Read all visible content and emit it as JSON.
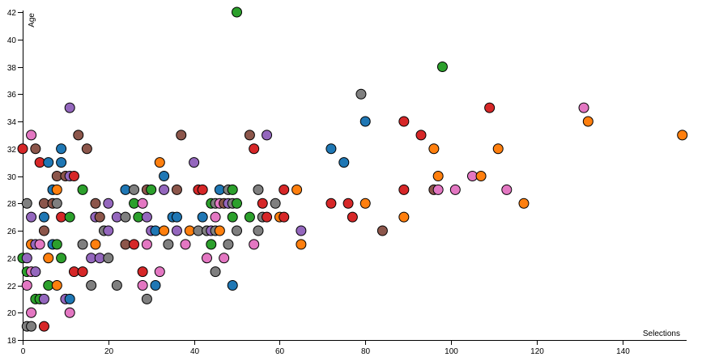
{
  "chart_data": {
    "type": "scatter",
    "xlabel": "Selections",
    "ylabel": "Age",
    "xlim": [
      0,
      155
    ],
    "ylim": [
      18,
      42
    ],
    "xticks": [
      0,
      20,
      40,
      60,
      80,
      100,
      120,
      140
    ],
    "yticks": [
      18,
      20,
      22,
      24,
      26,
      28,
      30,
      32,
      34,
      36,
      38,
      40,
      42
    ],
    "grid": false,
    "legend": "none",
    "colors": {
      "blue": "#1f77b4",
      "orange": "#ff7f0e",
      "green": "#2ca02c",
      "red": "#d62728",
      "purple": "#9467bd",
      "brown": "#8c564b",
      "pink": "#e377c2",
      "gray": "#7f7f7f"
    },
    "points": [
      {
        "x": 50,
        "y": 42,
        "c": "green"
      },
      {
        "x": 98,
        "y": 38,
        "c": "green"
      },
      {
        "x": 79,
        "y": 36,
        "c": "gray"
      },
      {
        "x": 11,
        "y": 35,
        "c": "purple"
      },
      {
        "x": 109,
        "y": 35,
        "c": "red"
      },
      {
        "x": 131,
        "y": 35,
        "c": "pink"
      },
      {
        "x": 80,
        "y": 34,
        "c": "blue"
      },
      {
        "x": 89,
        "y": 34,
        "c": "red"
      },
      {
        "x": 132,
        "y": 34,
        "c": "orange"
      },
      {
        "x": 2,
        "y": 33,
        "c": "pink"
      },
      {
        "x": 13,
        "y": 33,
        "c": "brown"
      },
      {
        "x": 37,
        "y": 33,
        "c": "brown"
      },
      {
        "x": 53,
        "y": 33,
        "c": "brown"
      },
      {
        "x": 57,
        "y": 33,
        "c": "purple"
      },
      {
        "x": 93,
        "y": 33,
        "c": "red"
      },
      {
        "x": 154,
        "y": 33,
        "c": "orange"
      },
      {
        "x": 0,
        "y": 32,
        "c": "red"
      },
      {
        "x": 3,
        "y": 32,
        "c": "brown"
      },
      {
        "x": 9,
        "y": 32,
        "c": "blue"
      },
      {
        "x": 15,
        "y": 32,
        "c": "brown"
      },
      {
        "x": 54,
        "y": 32,
        "c": "red"
      },
      {
        "x": 72,
        "y": 32,
        "c": "blue"
      },
      {
        "x": 96,
        "y": 32,
        "c": "orange"
      },
      {
        "x": 111,
        "y": 32,
        "c": "orange"
      },
      {
        "x": 4,
        "y": 31,
        "c": "red"
      },
      {
        "x": 6,
        "y": 31,
        "c": "blue"
      },
      {
        "x": 9,
        "y": 31,
        "c": "blue"
      },
      {
        "x": 32,
        "y": 31,
        "c": "orange"
      },
      {
        "x": 40,
        "y": 31,
        "c": "purple"
      },
      {
        "x": 75,
        "y": 31,
        "c": "blue"
      },
      {
        "x": 8,
        "y": 30,
        "c": "brown"
      },
      {
        "x": 10,
        "y": 30,
        "c": "brown"
      },
      {
        "x": 11,
        "y": 30,
        "c": "purple"
      },
      {
        "x": 12,
        "y": 30,
        "c": "red"
      },
      {
        "x": 33,
        "y": 30,
        "c": "blue"
      },
      {
        "x": 97,
        "y": 30,
        "c": "orange"
      },
      {
        "x": 105,
        "y": 30,
        "c": "pink"
      },
      {
        "x": 107,
        "y": 30,
        "c": "orange"
      },
      {
        "x": 7,
        "y": 29,
        "c": "blue"
      },
      {
        "x": 8,
        "y": 29,
        "c": "orange"
      },
      {
        "x": 14,
        "y": 29,
        "c": "green"
      },
      {
        "x": 24,
        "y": 29,
        "c": "blue"
      },
      {
        "x": 26,
        "y": 29,
        "c": "gray"
      },
      {
        "x": 29,
        "y": 29,
        "c": "brown"
      },
      {
        "x": 30,
        "y": 29,
        "c": "green"
      },
      {
        "x": 33,
        "y": 29,
        "c": "purple"
      },
      {
        "x": 36,
        "y": 29,
        "c": "brown"
      },
      {
        "x": 41,
        "y": 29,
        "c": "red"
      },
      {
        "x": 42,
        "y": 29,
        "c": "red"
      },
      {
        "x": 46,
        "y": 29,
        "c": "blue"
      },
      {
        "x": 48,
        "y": 29,
        "c": "gray"
      },
      {
        "x": 49,
        "y": 29,
        "c": "green"
      },
      {
        "x": 55,
        "y": 29,
        "c": "gray"
      },
      {
        "x": 61,
        "y": 29,
        "c": "red"
      },
      {
        "x": 64,
        "y": 29,
        "c": "orange"
      },
      {
        "x": 89,
        "y": 29,
        "c": "red"
      },
      {
        "x": 96,
        "y": 29,
        "c": "brown"
      },
      {
        "x": 97,
        "y": 29,
        "c": "pink"
      },
      {
        "x": 101,
        "y": 29,
        "c": "pink"
      },
      {
        "x": 113,
        "y": 29,
        "c": "pink"
      },
      {
        "x": 1,
        "y": 28,
        "c": "gray"
      },
      {
        "x": 5,
        "y": 28,
        "c": "brown"
      },
      {
        "x": 7,
        "y": 28,
        "c": "brown"
      },
      {
        "x": 8,
        "y": 28,
        "c": "gray"
      },
      {
        "x": 17,
        "y": 28,
        "c": "brown"
      },
      {
        "x": 20,
        "y": 28,
        "c": "purple"
      },
      {
        "x": 26,
        "y": 28,
        "c": "green"
      },
      {
        "x": 28,
        "y": 28,
        "c": "pink"
      },
      {
        "x": 44,
        "y": 28,
        "c": "green"
      },
      {
        "x": 45,
        "y": 28,
        "c": "gray"
      },
      {
        "x": 46,
        "y": 28,
        "c": "pink"
      },
      {
        "x": 47,
        "y": 28,
        "c": "brown"
      },
      {
        "x": 48,
        "y": 28,
        "c": "purple"
      },
      {
        "x": 49,
        "y": 28,
        "c": "gray"
      },
      {
        "x": 50,
        "y": 28,
        "c": "green"
      },
      {
        "x": 56,
        "y": 28,
        "c": "red"
      },
      {
        "x": 59,
        "y": 28,
        "c": "gray"
      },
      {
        "x": 72,
        "y": 28,
        "c": "red"
      },
      {
        "x": 76,
        "y": 28,
        "c": "red"
      },
      {
        "x": 80,
        "y": 28,
        "c": "orange"
      },
      {
        "x": 117,
        "y": 28,
        "c": "orange"
      },
      {
        "x": 2,
        "y": 27,
        "c": "purple"
      },
      {
        "x": 5,
        "y": 27,
        "c": "blue"
      },
      {
        "x": 9,
        "y": 27,
        "c": "red"
      },
      {
        "x": 11,
        "y": 27,
        "c": "green"
      },
      {
        "x": 17,
        "y": 27,
        "c": "purple"
      },
      {
        "x": 18,
        "y": 27,
        "c": "brown"
      },
      {
        "x": 22,
        "y": 27,
        "c": "purple"
      },
      {
        "x": 24,
        "y": 27,
        "c": "gray"
      },
      {
        "x": 27,
        "y": 27,
        "c": "green"
      },
      {
        "x": 29,
        "y": 27,
        "c": "purple"
      },
      {
        "x": 35,
        "y": 27,
        "c": "blue"
      },
      {
        "x": 36,
        "y": 27,
        "c": "blue"
      },
      {
        "x": 42,
        "y": 27,
        "c": "blue"
      },
      {
        "x": 45,
        "y": 27,
        "c": "pink"
      },
      {
        "x": 49,
        "y": 27,
        "c": "green"
      },
      {
        "x": 53,
        "y": 27,
        "c": "green"
      },
      {
        "x": 56,
        "y": 27,
        "c": "gray"
      },
      {
        "x": 57,
        "y": 27,
        "c": "red"
      },
      {
        "x": 60,
        "y": 27,
        "c": "orange"
      },
      {
        "x": 61,
        "y": 27,
        "c": "red"
      },
      {
        "x": 77,
        "y": 27,
        "c": "red"
      },
      {
        "x": 89,
        "y": 27,
        "c": "orange"
      },
      {
        "x": 5,
        "y": 26,
        "c": "brown"
      },
      {
        "x": 19,
        "y": 26,
        "c": "gray"
      },
      {
        "x": 20,
        "y": 26,
        "c": "purple"
      },
      {
        "x": 30,
        "y": 26,
        "c": "purple"
      },
      {
        "x": 31,
        "y": 26,
        "c": "blue"
      },
      {
        "x": 33,
        "y": 26,
        "c": "orange"
      },
      {
        "x": 36,
        "y": 26,
        "c": "purple"
      },
      {
        "x": 39,
        "y": 26,
        "c": "orange"
      },
      {
        "x": 41,
        "y": 26,
        "c": "gray"
      },
      {
        "x": 43,
        "y": 26,
        "c": "gray"
      },
      {
        "x": 44,
        "y": 26,
        "c": "purple"
      },
      {
        "x": 45,
        "y": 26,
        "c": "gray"
      },
      {
        "x": 46,
        "y": 26,
        "c": "orange"
      },
      {
        "x": 50,
        "y": 26,
        "c": "gray"
      },
      {
        "x": 55,
        "y": 26,
        "c": "gray"
      },
      {
        "x": 65,
        "y": 26,
        "c": "purple"
      },
      {
        "x": 84,
        "y": 26,
        "c": "brown"
      },
      {
        "x": 2,
        "y": 25,
        "c": "orange"
      },
      {
        "x": 3,
        "y": 25,
        "c": "purple"
      },
      {
        "x": 4,
        "y": 25,
        "c": "pink"
      },
      {
        "x": 7,
        "y": 25,
        "c": "blue"
      },
      {
        "x": 8,
        "y": 25,
        "c": "green"
      },
      {
        "x": 14,
        "y": 25,
        "c": "gray"
      },
      {
        "x": 17,
        "y": 25,
        "c": "orange"
      },
      {
        "x": 24,
        "y": 25,
        "c": "brown"
      },
      {
        "x": 26,
        "y": 25,
        "c": "red"
      },
      {
        "x": 29,
        "y": 25,
        "c": "pink"
      },
      {
        "x": 34,
        "y": 25,
        "c": "gray"
      },
      {
        "x": 38,
        "y": 25,
        "c": "pink"
      },
      {
        "x": 44,
        "y": 25,
        "c": "green"
      },
      {
        "x": 48,
        "y": 25,
        "c": "gray"
      },
      {
        "x": 54,
        "y": 25,
        "c": "pink"
      },
      {
        "x": 65,
        "y": 25,
        "c": "orange"
      },
      {
        "x": 0,
        "y": 24,
        "c": "green"
      },
      {
        "x": 1,
        "y": 24,
        "c": "purple"
      },
      {
        "x": 6,
        "y": 24,
        "c": "orange"
      },
      {
        "x": 9,
        "y": 24,
        "c": "green"
      },
      {
        "x": 16,
        "y": 24,
        "c": "purple"
      },
      {
        "x": 18,
        "y": 24,
        "c": "purple"
      },
      {
        "x": 20,
        "y": 24,
        "c": "gray"
      },
      {
        "x": 43,
        "y": 24,
        "c": "pink"
      },
      {
        "x": 47,
        "y": 24,
        "c": "pink"
      },
      {
        "x": 1,
        "y": 23,
        "c": "green"
      },
      {
        "x": 2,
        "y": 23,
        "c": "pink"
      },
      {
        "x": 3,
        "y": 23,
        "c": "purple"
      },
      {
        "x": 12,
        "y": 23,
        "c": "red"
      },
      {
        "x": 14,
        "y": 23,
        "c": "red"
      },
      {
        "x": 28,
        "y": 23,
        "c": "red"
      },
      {
        "x": 32,
        "y": 23,
        "c": "pink"
      },
      {
        "x": 45,
        "y": 23,
        "c": "gray"
      },
      {
        "x": 1,
        "y": 22,
        "c": "pink"
      },
      {
        "x": 6,
        "y": 22,
        "c": "green"
      },
      {
        "x": 8,
        "y": 22,
        "c": "orange"
      },
      {
        "x": 16,
        "y": 22,
        "c": "gray"
      },
      {
        "x": 22,
        "y": 22,
        "c": "gray"
      },
      {
        "x": 28,
        "y": 22,
        "c": "pink"
      },
      {
        "x": 31,
        "y": 22,
        "c": "blue"
      },
      {
        "x": 49,
        "y": 22,
        "c": "blue"
      },
      {
        "x": 3,
        "y": 21,
        "c": "green"
      },
      {
        "x": 4,
        "y": 21,
        "c": "green"
      },
      {
        "x": 5,
        "y": 21,
        "c": "purple"
      },
      {
        "x": 10,
        "y": 21,
        "c": "purple"
      },
      {
        "x": 11,
        "y": 21,
        "c": "blue"
      },
      {
        "x": 29,
        "y": 21,
        "c": "gray"
      },
      {
        "x": 2,
        "y": 20,
        "c": "pink"
      },
      {
        "x": 11,
        "y": 20,
        "c": "pink"
      },
      {
        "x": 1,
        "y": 19,
        "c": "gray"
      },
      {
        "x": 2,
        "y": 19,
        "c": "gray"
      },
      {
        "x": 5,
        "y": 19,
        "c": "red"
      }
    ]
  }
}
